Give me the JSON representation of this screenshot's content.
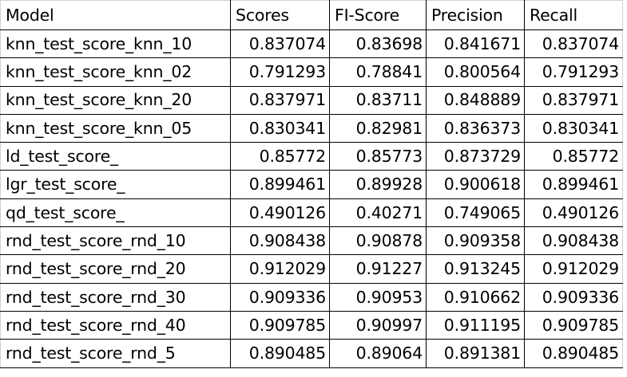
{
  "table": {
    "headers": [
      "Model",
      "Scores",
      "FI-Score",
      "Precision",
      "Recall"
    ],
    "rows": [
      [
        "knn_test_score_knn_10",
        "0.837074",
        "0.83698",
        "0.841671",
        "0.837074"
      ],
      [
        "knn_test_score_knn_02",
        "0.791293",
        "0.78841",
        "0.800564",
        "0.791293"
      ],
      [
        "knn_test_score_knn_20",
        "0.837971",
        "0.83711",
        "0.848889",
        "0.837971"
      ],
      [
        "knn_test_score_knn_05",
        "0.830341",
        "0.82981",
        "0.836373",
        "0.830341"
      ],
      [
        "ld_test_score_",
        "0.85772",
        "0.85773",
        "0.873729",
        "0.85772"
      ],
      [
        "lgr_test_score_",
        "0.899461",
        "0.89928",
        "0.900618",
        "0.899461"
      ],
      [
        "qd_test_score_",
        "0.490126",
        "0.40271",
        "0.749065",
        "0.490126"
      ],
      [
        "rnd_test_score_rnd_10",
        "0.908438",
        "0.90878",
        "0.909358",
        "0.908438"
      ],
      [
        "rnd_test_score_rnd_20",
        "0.912029",
        "0.91227",
        "0.913245",
        "0.912029"
      ],
      [
        "rnd_test_score_rnd_30",
        "0.909336",
        "0.90953",
        "0.910662",
        "0.909336"
      ],
      [
        "rnd_test_score_rnd_40",
        "0.909785",
        "0.90997",
        "0.911195",
        "0.909785"
      ],
      [
        "rnd_test_score_rnd_5",
        "0.890485",
        "0.89064",
        "0.891381",
        "0.890485"
      ]
    ]
  }
}
